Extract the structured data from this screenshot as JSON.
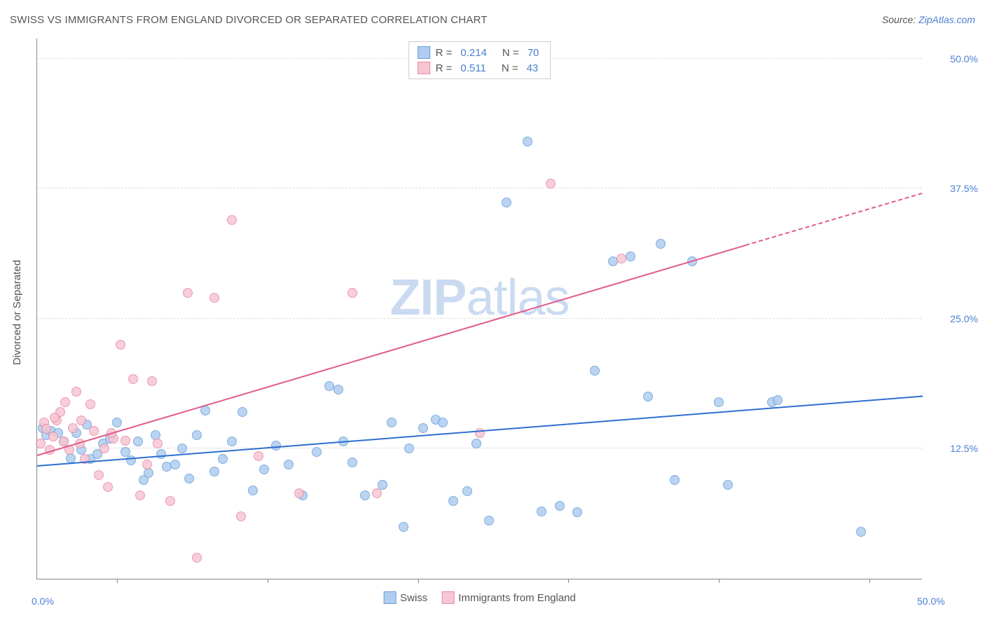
{
  "title": "SWISS VS IMMIGRANTS FROM ENGLAND DIVORCED OR SEPARATED CORRELATION CHART",
  "source_label": "Source: ",
  "source_link": "ZipAtlas.com",
  "y_axis_title": "Divorced or Separated",
  "watermark": {
    "bold": "ZIP",
    "light": "atlas"
  },
  "chart": {
    "type": "scatter",
    "xlim": [
      0,
      50
    ],
    "ylim": [
      0,
      52
    ],
    "x_ticks": [
      0,
      50
    ],
    "x_tick_labels": [
      "0.0%",
      "50.0%"
    ],
    "x_minor_ticks": [
      4.5,
      13,
      21.5,
      30,
      38.5,
      47
    ],
    "y_ticks": [
      12.5,
      25.0,
      37.5,
      50.0
    ],
    "y_tick_labels": [
      "12.5%",
      "25.0%",
      "37.5%",
      "50.0%"
    ],
    "grid_color": "#dddddd",
    "background_color": "#ffffff",
    "axis_color": "#888888",
    "label_color": "#4a7fd1",
    "text_color": "#555555"
  },
  "series": [
    {
      "name": "Swiss",
      "color_fill": "#aecdf0",
      "color_stroke": "#6b9fd8",
      "marker_radius": 7,
      "R": "0.214",
      "N": "70",
      "trend": {
        "x1": 0,
        "y1": 10.8,
        "x2": 50,
        "y2": 17.5,
        "color": "#2e6fd1",
        "width": 2
      },
      "points": [
        [
          0.3,
          14.5
        ],
        [
          0.5,
          13.8
        ],
        [
          0.8,
          14.2
        ],
        [
          1.2,
          14.0
        ],
        [
          1.5,
          13.2
        ],
        [
          1.9,
          11.6
        ],
        [
          2.2,
          14.0
        ],
        [
          2.5,
          12.4
        ],
        [
          2.8,
          14.8
        ],
        [
          3.0,
          11.5
        ],
        [
          3.4,
          12.0
        ],
        [
          3.7,
          13.0
        ],
        [
          4.1,
          13.5
        ],
        [
          4.5,
          15.0
        ],
        [
          5.0,
          12.2
        ],
        [
          5.3,
          11.4
        ],
        [
          5.7,
          13.2
        ],
        [
          6.0,
          9.5
        ],
        [
          6.3,
          10.2
        ],
        [
          6.7,
          13.8
        ],
        [
          7.0,
          12.0
        ],
        [
          7.3,
          10.8
        ],
        [
          7.8,
          11.0
        ],
        [
          8.2,
          12.5
        ],
        [
          8.6,
          9.6
        ],
        [
          9.0,
          13.8
        ],
        [
          9.5,
          16.2
        ],
        [
          10.0,
          10.3
        ],
        [
          10.5,
          11.5
        ],
        [
          11.0,
          13.2
        ],
        [
          11.6,
          16.0
        ],
        [
          12.2,
          8.5
        ],
        [
          12.8,
          10.5
        ],
        [
          13.5,
          12.8
        ],
        [
          14.2,
          11.0
        ],
        [
          15.0,
          8.0
        ],
        [
          15.8,
          12.2
        ],
        [
          16.5,
          18.5
        ],
        [
          17.0,
          18.2
        ],
        [
          17.3,
          13.2
        ],
        [
          17.8,
          11.2
        ],
        [
          18.5,
          8.0
        ],
        [
          19.5,
          9.0
        ],
        [
          20.0,
          15.0
        ],
        [
          20.7,
          5.0
        ],
        [
          21.0,
          12.5
        ],
        [
          21.8,
          14.5
        ],
        [
          22.5,
          15.3
        ],
        [
          22.9,
          15.0
        ],
        [
          23.5,
          7.5
        ],
        [
          24.3,
          8.4
        ],
        [
          24.8,
          13.0
        ],
        [
          25.5,
          5.6
        ],
        [
          26.5,
          36.2
        ],
        [
          27.7,
          42.0
        ],
        [
          28.5,
          6.5
        ],
        [
          29.5,
          7.0
        ],
        [
          30.5,
          6.4
        ],
        [
          31.5,
          20.0
        ],
        [
          32.5,
          30.5
        ],
        [
          33.5,
          31.0
        ],
        [
          34.5,
          17.5
        ],
        [
          36.0,
          9.5
        ],
        [
          37.0,
          30.5
        ],
        [
          38.5,
          17.0
        ],
        [
          39.0,
          9.0
        ],
        [
          41.5,
          17.0
        ],
        [
          41.8,
          17.2
        ],
        [
          46.5,
          4.5
        ],
        [
          35.2,
          32.2
        ]
      ]
    },
    {
      "name": "Immigrants from England",
      "color_fill": "#f6c6d3",
      "color_stroke": "#e889a5",
      "marker_radius": 7,
      "R": "0.511",
      "N": "43",
      "trend": {
        "x1": 0,
        "y1": 11.8,
        "x2": 40,
        "y2": 32.0,
        "color": "#e15a8a",
        "width": 2,
        "dash_extend_to_x": 50,
        "dash_y": 37.0
      },
      "points": [
        [
          0.2,
          13.0
        ],
        [
          0.4,
          15.0
        ],
        [
          0.5,
          14.4
        ],
        [
          0.7,
          12.4
        ],
        [
          0.9,
          13.7
        ],
        [
          1.1,
          15.2
        ],
        [
          1.3,
          16.0
        ],
        [
          1.5,
          13.2
        ],
        [
          1.6,
          17.0
        ],
        [
          1.8,
          12.4
        ],
        [
          2.0,
          14.5
        ],
        [
          2.2,
          18.0
        ],
        [
          2.5,
          15.2
        ],
        [
          2.7,
          11.5
        ],
        [
          3.0,
          16.8
        ],
        [
          3.2,
          14.2
        ],
        [
          3.5,
          10.0
        ],
        [
          3.8,
          12.5
        ],
        [
          4.0,
          8.8
        ],
        [
          4.3,
          13.5
        ],
        [
          4.7,
          22.5
        ],
        [
          5.0,
          13.3
        ],
        [
          5.4,
          19.2
        ],
        [
          5.8,
          8.0
        ],
        [
          6.2,
          11.0
        ],
        [
          6.5,
          19.0
        ],
        [
          6.8,
          13.0
        ],
        [
          7.5,
          7.5
        ],
        [
          8.5,
          27.5
        ],
        [
          9.0,
          2.0
        ],
        [
          10.0,
          27.0
        ],
        [
          11.0,
          34.5
        ],
        [
          11.5,
          6.0
        ],
        [
          12.5,
          11.8
        ],
        [
          14.8,
          8.2
        ],
        [
          17.8,
          27.5
        ],
        [
          19.2,
          8.2
        ],
        [
          25.0,
          14.0
        ],
        [
          29.0,
          38.0
        ],
        [
          33.0,
          30.8
        ],
        [
          4.2,
          14.0
        ],
        [
          2.4,
          13.0
        ],
        [
          1.0,
          15.5
        ]
      ]
    }
  ],
  "legend_top": {
    "rows": [
      {
        "swatch_fill": "#aecdf0",
        "swatch_stroke": "#6b9fd8",
        "r_label": "R =",
        "r_val": "0.214",
        "n_label": "N =",
        "n_val": "70"
      },
      {
        "swatch_fill": "#f6c6d3",
        "swatch_stroke": "#e889a5",
        "r_label": "R =",
        "r_val": "0.511",
        "n_label": "N =",
        "n_val": "43"
      }
    ]
  },
  "legend_bottom": [
    {
      "swatch_fill": "#aecdf0",
      "swatch_stroke": "#6b9fd8",
      "label": "Swiss"
    },
    {
      "swatch_fill": "#f6c6d3",
      "swatch_stroke": "#e889a5",
      "label": "Immigrants from England"
    }
  ]
}
